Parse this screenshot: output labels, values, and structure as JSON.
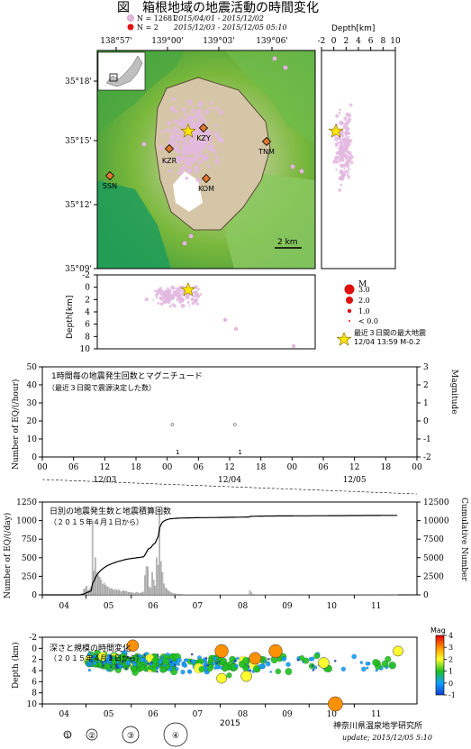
{
  "header": {
    "title": "図　箱根地域の地震活動の時間変化",
    "legend_pink_count": "N = 12681",
    "legend_pink_period": "2015/04/01 - 2015/12/02",
    "legend_red_count": "N = 2",
    "legend_red_period": "2015/12/03 - 2015/12/05 05:10",
    "pink_color": "#e3b8e0",
    "red_color": "#e01010"
  },
  "map": {
    "lon_ticks": [
      "138°57'",
      "139°00'",
      "139°03'",
      "139°06'"
    ],
    "lat_ticks": [
      "35°18'",
      "35°15'",
      "35°12'",
      "35°09'"
    ],
    "stations": [
      "KZY",
      "TNM",
      "KZR",
      "SSN",
      "KOM"
    ],
    "scale_label": "2 km",
    "star_color": "#ffe600"
  },
  "depth_side": {
    "axis_title": "Depth[km]",
    "ticks": [
      "-2",
      "0",
      "2",
      "4",
      "6",
      "8",
      "10"
    ]
  },
  "depth_bottom": {
    "axis_title": "Depth[km]",
    "ticks": [
      "-2",
      "0",
      "2",
      "4",
      "6",
      "8",
      "10"
    ]
  },
  "magnitude_legend": {
    "title": "M",
    "items": [
      "3.0",
      "2.0",
      "1.0",
      "< 0.0"
    ],
    "max_quake_title": "最近３日間の最大地震",
    "max_quake_detail": "12/04 13:59 M-0.2"
  },
  "chart_data": [
    {
      "type": "scatter",
      "title": "1時間毎の地震発生回数とマグニチュード",
      "subtitle": "（最近３日間で震源決定した数）",
      "ylabel": "Number of EQ/(/hour)",
      "y2label": "Magnitude",
      "ylim": [
        0,
        50
      ],
      "y2lim": [
        -2,
        3
      ],
      "y_ticks": [
        "0",
        "10",
        "20",
        "30",
        "40",
        "50"
      ],
      "y2_ticks": [
        "-2",
        "-1",
        "0",
        "1",
        "2",
        "3"
      ],
      "x_hour_ticks": [
        "00",
        "06",
        "12",
        "18",
        "00",
        "06",
        "12",
        "18",
        "00",
        "06",
        "12",
        "18",
        "00"
      ],
      "x_day_labels": [
        "12/03",
        "12/04",
        "12/05"
      ],
      "counts": [
        {
          "day": "12/04",
          "hour": 2,
          "value": 1
        },
        {
          "day": "12/04",
          "hour": 14,
          "value": 1
        }
      ],
      "magnitudes": [
        {
          "day": "12/04",
          "hour": 1,
          "value": -0.2
        },
        {
          "day": "12/04",
          "hour": 13,
          "value": -0.2
        }
      ]
    },
    {
      "type": "bar",
      "title": "日別の地震発生数と地震積算回数",
      "subtitle": "（２０１５年４月１日から）",
      "ylabel": "Number of EQ/(/day)",
      "y2label": "Cumulative Number",
      "ylim": [
        0,
        1250
      ],
      "y2lim": [
        0,
        12500
      ],
      "y_ticks": [
        "0",
        "250",
        "500",
        "750",
        "1000",
        "1250"
      ],
      "y2_ticks": [
        "0",
        "2500",
        "5000",
        "7500",
        "10000",
        "12500"
      ],
      "x_months": [
        "04",
        "05",
        "06",
        "07",
        "08",
        "09",
        "10",
        "11"
      ],
      "daily_counts_by_month": {
        "04": [
          0,
          0,
          0,
          0,
          0,
          0,
          0,
          0,
          0,
          0,
          0,
          0,
          0,
          0,
          0,
          0,
          0,
          0,
          0,
          0,
          0,
          0,
          0,
          0,
          0,
          3,
          8,
          20,
          70,
          90
        ],
        "05": [
          120,
          60,
          80,
          110,
          1000,
          320,
          500,
          300,
          260,
          240,
          200,
          140,
          160,
          130,
          110,
          100,
          80,
          90,
          70,
          60,
          80,
          60,
          70,
          50,
          40,
          60,
          50,
          45,
          40,
          35,
          30
        ],
        "06": [
          30,
          25,
          20,
          35,
          30,
          20,
          25,
          30,
          40,
          260,
          380,
          380,
          110,
          90,
          300,
          200,
          120,
          500,
          400,
          1170,
          450,
          300,
          150,
          100,
          80,
          60,
          40,
          30,
          20,
          15
        ],
        "07": [
          15,
          10,
          10,
          8,
          8,
          6,
          6,
          5,
          5,
          5,
          4,
          4,
          4,
          3,
          3,
          3,
          3,
          3,
          2,
          2,
          2,
          2,
          2,
          2,
          2,
          2,
          2,
          2,
          2,
          2,
          2
        ],
        "08": [
          3,
          3,
          3,
          5,
          3,
          3,
          3,
          3,
          3,
          3,
          3,
          3,
          3,
          4,
          3,
          4,
          3,
          3,
          3,
          3,
          60,
          30,
          10,
          5,
          5,
          3,
          3,
          3,
          3,
          3,
          3
        ],
        "09": [
          2,
          2,
          2,
          2,
          1,
          1,
          1,
          1,
          1,
          1,
          1,
          1,
          1,
          1,
          1,
          1,
          1,
          1,
          1,
          1,
          1,
          1,
          1,
          1,
          1,
          1,
          1,
          1,
          1,
          1
        ],
        "10": [
          1,
          1,
          1,
          1,
          1,
          1,
          1,
          1,
          1,
          1,
          1,
          1,
          1,
          1,
          1,
          1,
          1,
          1,
          1,
          1,
          1,
          1,
          1,
          1,
          1,
          1,
          1,
          1,
          1,
          1,
          1
        ],
        "11": [
          1,
          1,
          1,
          1,
          1,
          1,
          1,
          1,
          1,
          1,
          1,
          1,
          1,
          1,
          1,
          1,
          1,
          1,
          1,
          1,
          1,
          1,
          1,
          1,
          1,
          1,
          1,
          1,
          1,
          1
        ]
      }
    },
    {
      "type": "scatter",
      "title": "深さと規模の時間変化",
      "subtitle": "（２０１５年４月１日から）",
      "ylabel": "Depth (km)",
      "xlabel": "2015",
      "ylim": [
        -2,
        10
      ],
      "y_ticks": [
        "-2",
        "0",
        "2",
        "4",
        "6",
        "8",
        "10"
      ],
      "x_months": [
        "04",
        "05",
        "06",
        "07",
        "08",
        "09",
        "10",
        "11"
      ],
      "color_scale_title": "Mag",
      "color_scale_ticks": [
        "-1",
        "0",
        "1",
        "2",
        "3",
        "4"
      ],
      "color_scale_colors": [
        "#1040d0",
        "#10a0ff",
        "#20c020",
        "#ffff30",
        "#ff9000",
        "#e00000"
      ],
      "size_legend": [
        "①",
        "②",
        "③",
        "④"
      ],
      "large_events": [
        {
          "month": "06",
          "day": 1,
          "depth": -0.5,
          "mag": 2.5
        },
        {
          "month": "08",
          "day": 1,
          "depth": 0.5,
          "mag": 3.0
        },
        {
          "month": "08",
          "day": 1,
          "depth": 5.4,
          "mag": 2.0
        },
        {
          "month": "08",
          "day": 18,
          "depth": 5.0,
          "mag": 2.2
        },
        {
          "month": "08",
          "day": 24,
          "depth": 1.8,
          "mag": 2.6
        },
        {
          "month": "09",
          "day": 7,
          "depth": 0.5,
          "mag": 3.0
        },
        {
          "month": "10",
          "day": 10,
          "depth": 2.6,
          "mag": 2.2
        },
        {
          "month": "10",
          "day": 18,
          "depth": 10.0,
          "mag": 3.4
        },
        {
          "month": "11",
          "day": 30,
          "depth": 0.5,
          "mag": 2.0
        }
      ]
    }
  ],
  "footer": {
    "institute": "神奈川県温泉地学研究所",
    "update": "update; 2015/12/05  5:10"
  }
}
